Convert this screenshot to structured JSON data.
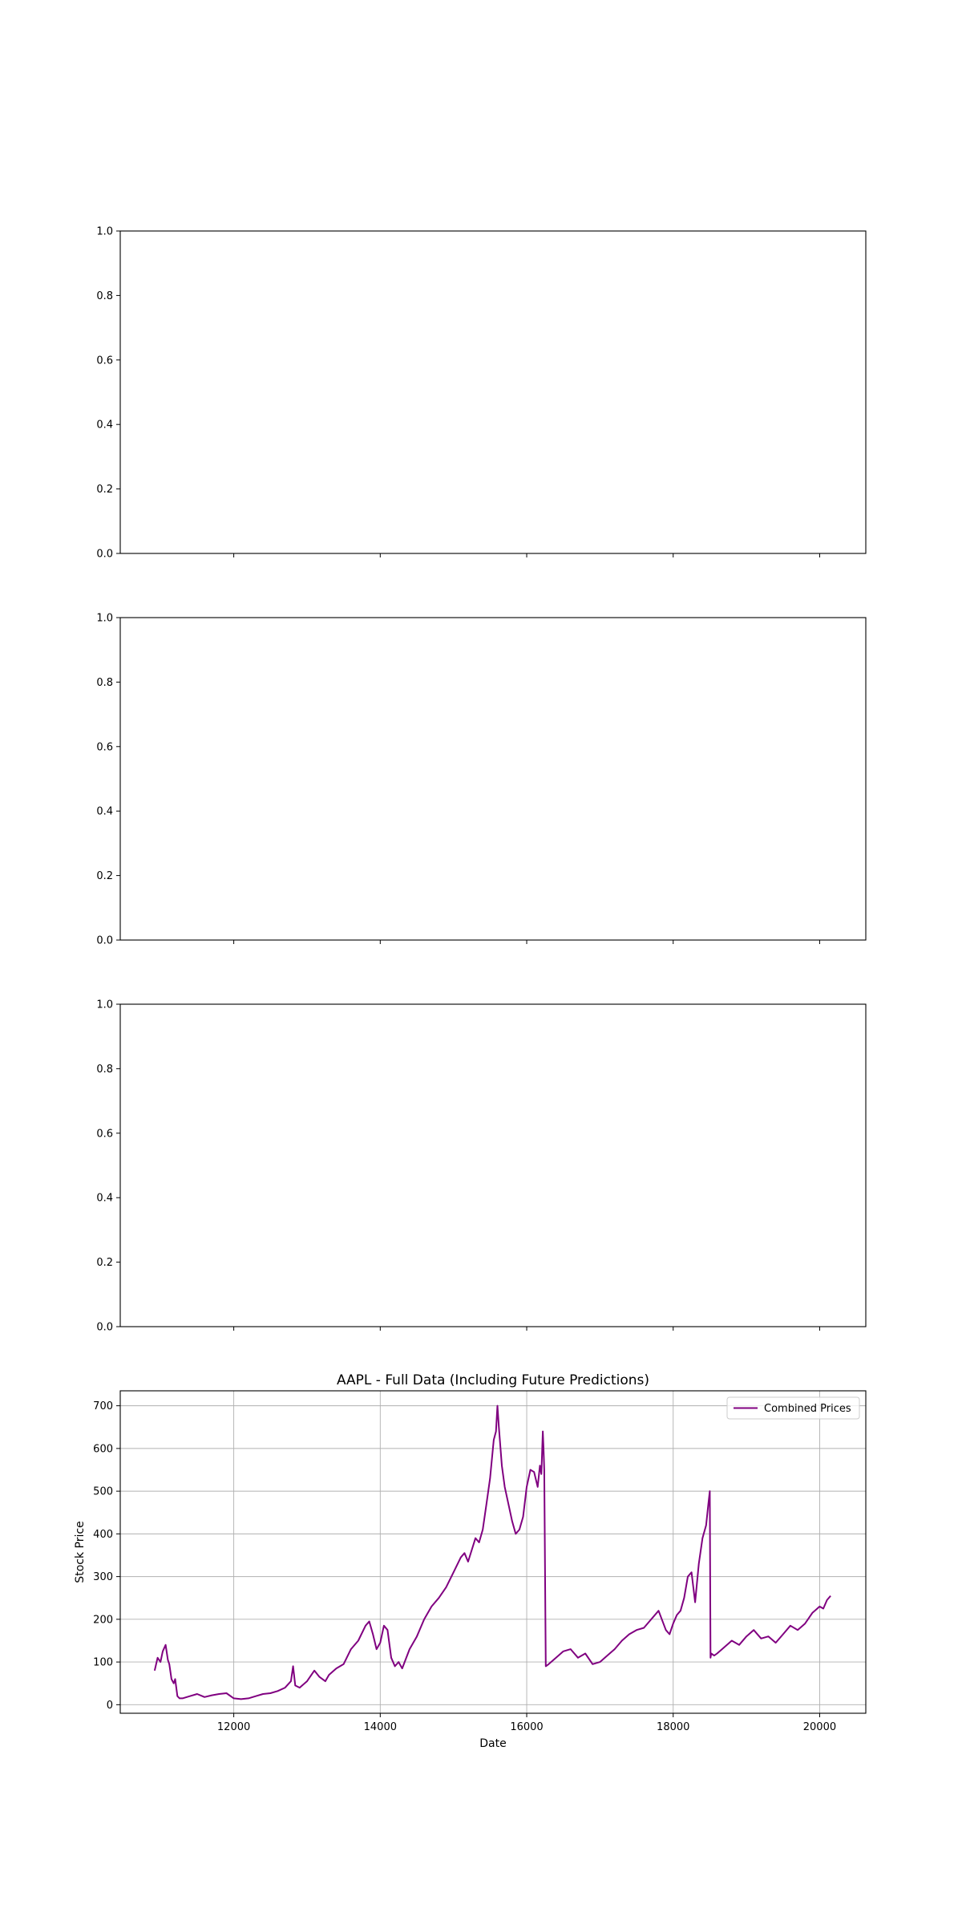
{
  "chart_data": [
    {
      "type": "line",
      "title": "",
      "xlabel": "",
      "ylabel": "",
      "series": [],
      "xlim": [
        10450,
        20630
      ],
      "ylim": [
        0,
        1
      ],
      "yticks": [
        "0.0",
        "0.2",
        "0.4",
        "0.6",
        "0.8",
        "1.0"
      ],
      "xticks": [
        12000,
        14000,
        16000,
        18000,
        20000
      ],
      "show_xtick_labels": false,
      "grid": false
    },
    {
      "type": "line",
      "title": "",
      "xlabel": "",
      "ylabel": "",
      "series": [],
      "xlim": [
        10450,
        20630
      ],
      "ylim": [
        0,
        1
      ],
      "yticks": [
        "0.0",
        "0.2",
        "0.4",
        "0.6",
        "0.8",
        "1.0"
      ],
      "xticks": [
        12000,
        14000,
        16000,
        18000,
        20000
      ],
      "show_xtick_labels": false,
      "grid": false
    },
    {
      "type": "line",
      "title": "",
      "xlabel": "",
      "ylabel": "",
      "series": [],
      "xlim": [
        10450,
        20630
      ],
      "ylim": [
        0,
        1
      ],
      "yticks": [
        "0.0",
        "0.2",
        "0.4",
        "0.6",
        "0.8",
        "1.0"
      ],
      "xticks": [
        12000,
        14000,
        16000,
        18000,
        20000
      ],
      "show_xtick_labels": false,
      "grid": false
    },
    {
      "type": "line",
      "title": "AAPL - Full Data (Including Future Predictions)",
      "xlabel": "Date",
      "ylabel": "Stock Price",
      "xlim": [
        10450,
        20630
      ],
      "ylim": [
        -20,
        735
      ],
      "xticks": [
        12000,
        14000,
        16000,
        18000,
        20000
      ],
      "yticks": [
        0,
        100,
        200,
        300,
        400,
        500,
        600,
        700
      ],
      "show_xtick_labels": true,
      "grid": true,
      "legend_position": "top-right",
      "series": [
        {
          "name": "Combined Prices",
          "color": "#800080",
          "x": [
            10920,
            10960,
            11000,
            11030,
            11070,
            11100,
            11120,
            11150,
            11180,
            11200,
            11230,
            11260,
            11300,
            11400,
            11500,
            11600,
            11700,
            11800,
            11900,
            12000,
            12100,
            12200,
            12300,
            12400,
            12500,
            12600,
            12700,
            12780,
            12810,
            12840,
            12900,
            13000,
            13100,
            13170,
            13250,
            13300,
            13400,
            13500,
            13600,
            13700,
            13800,
            13850,
            13900,
            13950,
            14000,
            14050,
            14100,
            14150,
            14200,
            14250,
            14300,
            14400,
            14500,
            14600,
            14700,
            14800,
            14900,
            15000,
            15100,
            15150,
            15200,
            15300,
            15350,
            15400,
            15450,
            15500,
            15550,
            15580,
            15600,
            15620,
            15660,
            15700,
            15750,
            15800,
            15850,
            15900,
            15950,
            16000,
            16050,
            16100,
            16150,
            16180,
            16200,
            16220,
            16230,
            16240,
            16260,
            16300,
            16400,
            16500,
            16600,
            16700,
            16800,
            16900,
            17000,
            17100,
            17200,
            17300,
            17400,
            17500,
            17600,
            17700,
            17800,
            17900,
            17950,
            18000,
            18050,
            18100,
            18150,
            18200,
            18250,
            18300,
            18350,
            18400,
            18450,
            18480,
            18500,
            18510,
            18520,
            18560,
            18600,
            18700,
            18800,
            18900,
            19000,
            19100,
            19200,
            19300,
            19400,
            19500,
            19600,
            19700,
            19800,
            19900,
            20000,
            20050,
            20100,
            20150
          ],
          "y": [
            80,
            110,
            100,
            125,
            140,
            105,
            95,
            60,
            50,
            60,
            20,
            15,
            15,
            20,
            25,
            18,
            22,
            25,
            27,
            15,
            13,
            15,
            20,
            25,
            27,
            32,
            40,
            55,
            90,
            45,
            40,
            55,
            80,
            65,
            55,
            70,
            85,
            95,
            130,
            150,
            185,
            195,
            165,
            130,
            145,
            185,
            175,
            110,
            90,
            100,
            85,
            130,
            160,
            200,
            230,
            250,
            275,
            310,
            345,
            355,
            335,
            390,
            380,
            410,
            470,
            530,
            620,
            640,
            700,
            650,
            560,
            510,
            470,
            430,
            400,
            410,
            440,
            510,
            550,
            545,
            510,
            560,
            540,
            640,
            600,
            550,
            90,
            95,
            110,
            125,
            130,
            110,
            120,
            95,
            100,
            115,
            130,
            150,
            165,
            175,
            180,
            200,
            220,
            175,
            165,
            190,
            210,
            220,
            250,
            300,
            310,
            240,
            330,
            390,
            420,
            470,
            500,
            110,
            120,
            115,
            120,
            135,
            150,
            140,
            160,
            175,
            155,
            160,
            145,
            165,
            185,
            175,
            190,
            215,
            230,
            225,
            245,
            255
          ]
        }
      ]
    }
  ]
}
